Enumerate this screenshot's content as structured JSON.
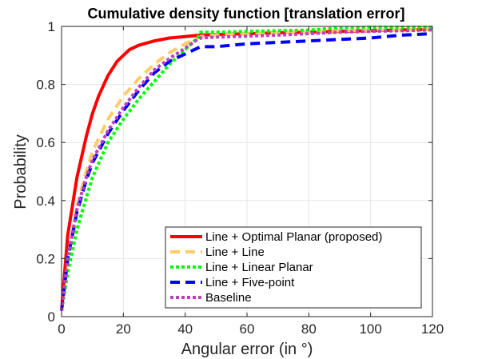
{
  "chart_data": {
    "type": "line",
    "title": "Cumulative density function [translation error]",
    "xlabel": "Angular error (in °)",
    "ylabel": "Probability",
    "xlim": [
      0,
      120
    ],
    "ylim": [
      0,
      1
    ],
    "xticks": [
      "0",
      "20",
      "40",
      "60",
      "80",
      "100",
      "120"
    ],
    "yticks": [
      "0",
      "0.2",
      "0.4",
      "0.6",
      "0.8",
      "1"
    ],
    "grid": true,
    "legend_position": "bottom-right",
    "series": [
      {
        "name": "Line + Optimal Planar (proposed)",
        "color": "#ff0000",
        "style": "solid",
        "x": [
          0,
          2,
          5,
          8,
          10,
          12,
          15,
          18,
          20,
          22,
          25,
          30,
          35,
          40,
          45,
          50,
          60,
          70,
          80,
          90,
          100,
          110,
          120
        ],
        "y": [
          0.02,
          0.28,
          0.48,
          0.62,
          0.7,
          0.76,
          0.83,
          0.88,
          0.9,
          0.92,
          0.935,
          0.95,
          0.96,
          0.965,
          0.97,
          0.972,
          0.975,
          0.978,
          0.98,
          0.983,
          0.985,
          0.988,
          0.99
        ]
      },
      {
        "name": "Line + Line",
        "color": "#ffcc66",
        "style": "dashed",
        "x": [
          0,
          2,
          5,
          8,
          10,
          15,
          20,
          25,
          30,
          35,
          40,
          45,
          50,
          60,
          70,
          80,
          90,
          100,
          110,
          120
        ],
        "y": [
          0.02,
          0.2,
          0.38,
          0.5,
          0.57,
          0.68,
          0.76,
          0.82,
          0.87,
          0.91,
          0.94,
          0.965,
          0.97,
          0.975,
          0.978,
          0.98,
          0.985,
          0.987,
          0.988,
          0.99
        ]
      },
      {
        "name": "Line + Linear Planar",
        "color": "#00ff00",
        "style": "dotted",
        "x": [
          0,
          2,
          5,
          8,
          10,
          15,
          20,
          25,
          30,
          35,
          40,
          44,
          45,
          50,
          60,
          70,
          80,
          90,
          100,
          110,
          120
        ],
        "y": [
          0.02,
          0.15,
          0.3,
          0.41,
          0.48,
          0.6,
          0.68,
          0.75,
          0.81,
          0.87,
          0.92,
          0.96,
          0.98,
          0.98,
          0.983,
          0.985,
          0.987,
          0.995,
          0.997,
          0.997,
          0.997
        ]
      },
      {
        "name": "Line + Five-point",
        "color": "#0000ff",
        "style": "dashed",
        "x": [
          0,
          2,
          5,
          8,
          10,
          15,
          20,
          25,
          30,
          35,
          40,
          44,
          45,
          50,
          60,
          70,
          80,
          90,
          100,
          110,
          120
        ],
        "y": [
          0.02,
          0.2,
          0.36,
          0.47,
          0.53,
          0.63,
          0.71,
          0.78,
          0.84,
          0.88,
          0.905,
          0.925,
          0.93,
          0.93,
          0.94,
          0.945,
          0.95,
          0.955,
          0.96,
          0.97,
          0.975
        ]
      },
      {
        "name": "Baseline",
        "color": "#bf40bf",
        "style": "dotted",
        "x": [
          0,
          2,
          5,
          8,
          10,
          15,
          20,
          25,
          30,
          35,
          40,
          44,
          45,
          50,
          60,
          70,
          80,
          90,
          100,
          110,
          120
        ],
        "y": [
          0.02,
          0.2,
          0.37,
          0.48,
          0.54,
          0.64,
          0.72,
          0.79,
          0.85,
          0.89,
          0.925,
          0.955,
          0.96,
          0.963,
          0.966,
          0.97,
          0.975,
          0.98,
          0.983,
          0.985,
          0.988
        ]
      }
    ]
  }
}
